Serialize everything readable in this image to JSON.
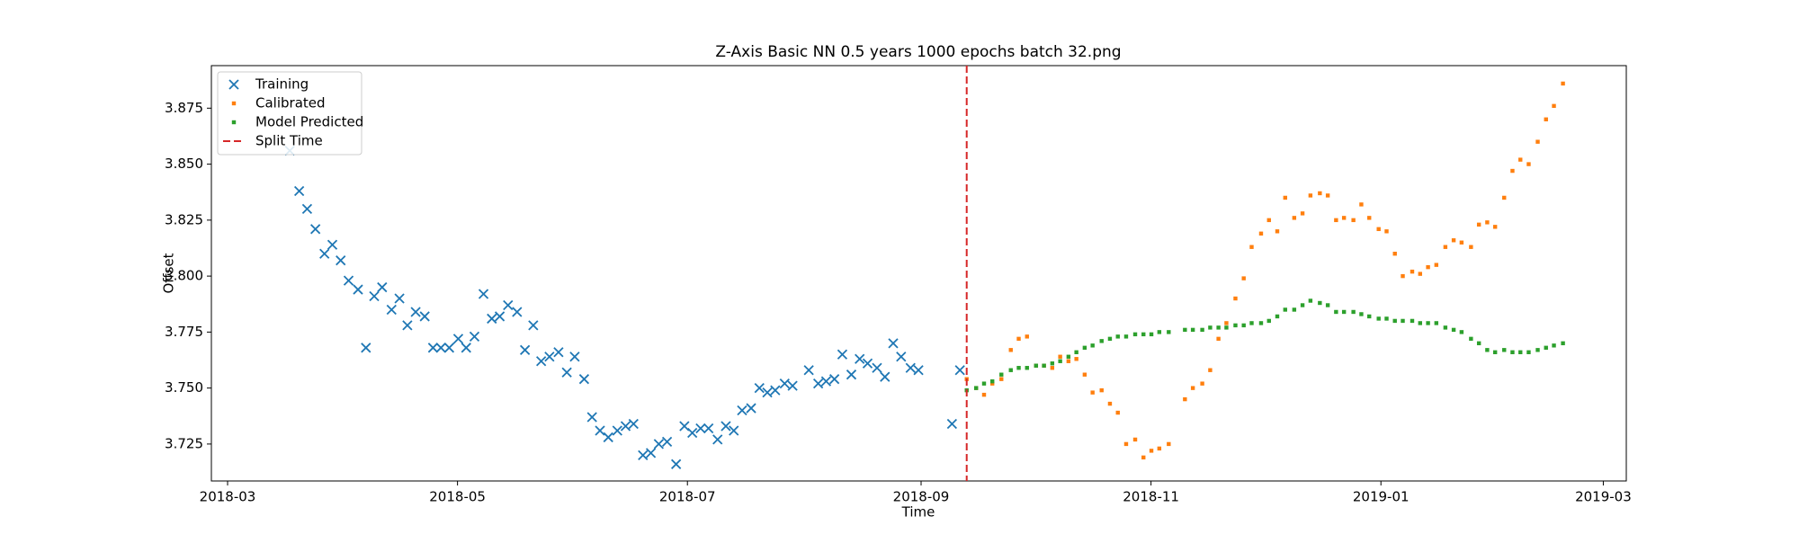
{
  "chart_data": {
    "type": "scatter",
    "title": "Z-Axis Basic NN 0.5 years 1000 epochs batch 32.png",
    "x_label": "Time",
    "y_label": "Offset",
    "xlim": [
      17586.7,
      17962.1
    ],
    "xticks": [
      {
        "value": 17591,
        "label": "2018-03"
      },
      {
        "value": 17652,
        "label": "2018-05"
      },
      {
        "value": 17713,
        "label": "2018-07"
      },
      {
        "value": 17775,
        "label": "2018-09"
      },
      {
        "value": 17836,
        "label": "2018-11"
      },
      {
        "value": 17897,
        "label": "2019-01"
      },
      {
        "value": 17956,
        "label": "2019-03"
      }
    ],
    "ylim": [
      3.7085,
      3.894
    ],
    "yticks": [
      3.725,
      {
        "value": 3.75,
        "label": "3.750"
      },
      3.775,
      {
        "value": 3.8,
        "label": "3.800"
      },
      3.825,
      {
        "value": 3.85,
        "label": "3.850"
      },
      3.875
    ],
    "grid": false,
    "legend": "upper left",
    "series": [
      {
        "name": "Training",
        "color": "#1f77b4",
        "marker": "x",
        "x": [
          17607.5,
          17610.0,
          17612.1,
          17614.3,
          17616.7,
          17618.8,
          17621.0,
          17623.1,
          17625.6,
          17627.7,
          17629.9,
          17632.0,
          17634.5,
          17636.6,
          17638.7,
          17640.9,
          17643.3,
          17645.5,
          17647.6,
          17649.8,
          17652.2,
          17654.3,
          17656.5,
          17658.9,
          17661.1,
          17663.2,
          17665.4,
          17667.8,
          17669.9,
          17672.1,
          17674.2,
          17676.4,
          17678.8,
          17681.0,
          17683.1,
          17685.6,
          17687.7,
          17689.8,
          17692.0,
          17694.4,
          17696.6,
          17698.7,
          17701.2,
          17703.3,
          17705.4,
          17707.6,
          17710.0,
          17712.2,
          17714.3,
          17716.5,
          17718.6,
          17721.0,
          17723.2,
          17725.3,
          17727.5,
          17729.9,
          17732.1,
          17734.2,
          17736.3,
          17738.8,
          17740.9,
          17745.2,
          17747.7,
          17749.8,
          17752.0,
          17754.1,
          17756.5,
          17758.7,
          17760.8,
          17763.3,
          17765.4,
          17767.6,
          17769.7,
          17772.2,
          17774.3,
          17783.2,
          17785.3
        ],
        "values": [
          3.856,
          3.838,
          3.83,
          3.821,
          3.81,
          3.814,
          3.807,
          3.798,
          3.794,
          3.768,
          3.791,
          3.795,
          3.785,
          3.79,
          3.778,
          3.784,
          3.782,
          3.768,
          3.768,
          3.768,
          3.772,
          3.768,
          3.773,
          3.792,
          3.781,
          3.782,
          3.787,
          3.784,
          3.767,
          3.778,
          3.762,
          3.764,
          3.766,
          3.757,
          3.764,
          3.754,
          3.737,
          3.731,
          3.728,
          3.731,
          3.733,
          3.734,
          3.72,
          3.721,
          3.725,
          3.726,
          3.716,
          3.733,
          3.73,
          3.732,
          3.732,
          3.727,
          3.733,
          3.731,
          3.74,
          3.741,
          3.75,
          3.748,
          3.749,
          3.752,
          3.751,
          3.758,
          3.752,
          3.753,
          3.754,
          3.765,
          3.756,
          3.763,
          3.761,
          3.759,
          3.755,
          3.77,
          3.764,
          3.759,
          3.758,
          3.734,
          3.758
        ]
      },
      {
        "name": "Calibrated",
        "color": "#ff7f0e",
        "marker": "dot",
        "x": [
          17787.1,
          17789.6,
          17791.7,
          17793.9,
          17796.3,
          17798.8,
          17800.9,
          17803.1,
          17805.5,
          17807.6,
          17809.8,
          17811.9,
          17814.1,
          17816.2,
          17818.4,
          17820.5,
          17822.9,
          17825.1,
          17827.2,
          17829.4,
          17831.8,
          17834.0,
          17836.1,
          17838.2,
          17840.7,
          17845.0,
          17847.1,
          17849.6,
          17851.7,
          17853.9,
          17856.0,
          17858.4,
          17860.6,
          17862.7,
          17865.2,
          17867.3,
          17869.5,
          17871.6,
          17874.0,
          17876.2,
          17878.3,
          17880.8,
          17882.9,
          17885.1,
          17887.2,
          17889.7,
          17891.8,
          17893.9,
          17896.4,
          17898.5,
          17900.7,
          17902.8,
          17905.3,
          17907.4,
          17909.5,
          17911.7,
          17914.1,
          17916.3,
          17918.4,
          17920.9,
          17923.0,
          17925.2,
          17927.3,
          17929.7,
          17931.9,
          17934.0,
          17936.2,
          17938.6,
          17940.8,
          17942.9,
          17945.3
        ],
        "values": [
          3.754,
          3.75,
          3.747,
          3.752,
          3.754,
          3.767,
          3.772,
          3.773,
          3.76,
          3.76,
          3.759,
          3.764,
          3.762,
          3.763,
          3.756,
          3.748,
          3.749,
          3.743,
          3.739,
          3.725,
          3.727,
          3.719,
          3.722,
          3.723,
          3.725,
          3.745,
          3.75,
          3.752,
          3.758,
          3.772,
          3.779,
          3.79,
          3.799,
          3.813,
          3.819,
          3.825,
          3.82,
          3.835,
          3.826,
          3.828,
          3.836,
          3.837,
          3.836,
          3.825,
          3.826,
          3.825,
          3.832,
          3.826,
          3.821,
          3.82,
          3.81,
          3.8,
          3.802,
          3.801,
          3.804,
          3.805,
          3.813,
          3.816,
          3.815,
          3.813,
          3.823,
          3.824,
          3.822,
          3.835,
          3.847,
          3.852,
          3.85,
          3.86,
          3.87,
          3.876,
          3.886
        ]
      },
      {
        "name": "Model Predicted",
        "color": "#2ca02c",
        "marker": "dot",
        "x": [
          17787.1,
          17789.6,
          17791.7,
          17793.9,
          17796.3,
          17798.8,
          17800.9,
          17803.1,
          17805.5,
          17807.6,
          17809.8,
          17811.9,
          17814.1,
          17816.2,
          17818.4,
          17820.5,
          17822.9,
          17825.1,
          17827.2,
          17829.4,
          17831.8,
          17834.0,
          17836.1,
          17838.2,
          17840.7,
          17845.0,
          17847.1,
          17849.6,
          17851.7,
          17853.9,
          17856.0,
          17858.4,
          17860.6,
          17862.7,
          17865.2,
          17867.3,
          17869.5,
          17871.6,
          17874.0,
          17876.2,
          17878.3,
          17880.8,
          17882.9,
          17885.1,
          17887.2,
          17889.7,
          17891.8,
          17893.9,
          17896.4,
          17898.5,
          17900.7,
          17902.8,
          17905.3,
          17907.4,
          17909.5,
          17911.7,
          17914.1,
          17916.3,
          17918.4,
          17920.9,
          17923.0,
          17925.2,
          17927.3,
          17929.7,
          17931.9,
          17934.0,
          17936.2,
          17938.6,
          17940.8,
          17942.9,
          17945.3
        ],
        "values": [
          3.749,
          3.75,
          3.752,
          3.753,
          3.756,
          3.758,
          3.759,
          3.759,
          3.76,
          3.76,
          3.761,
          3.762,
          3.764,
          3.766,
          3.768,
          3.769,
          3.771,
          3.772,
          3.773,
          3.773,
          3.774,
          3.774,
          3.774,
          3.775,
          3.775,
          3.776,
          3.776,
          3.776,
          3.777,
          3.777,
          3.777,
          3.778,
          3.778,
          3.779,
          3.779,
          3.78,
          3.782,
          3.785,
          3.785,
          3.787,
          3.789,
          3.788,
          3.787,
          3.784,
          3.784,
          3.784,
          3.783,
          3.782,
          3.781,
          3.781,
          3.78,
          3.78,
          3.78,
          3.779,
          3.779,
          3.779,
          3.777,
          3.776,
          3.775,
          3.772,
          3.77,
          3.767,
          3.766,
          3.767,
          3.766,
          3.766,
          3.766,
          3.767,
          3.768,
          3.769,
          3.77
        ]
      }
    ],
    "vlines": [
      {
        "name": "Split Time",
        "x": 17787.1,
        "color": "#d62728"
      }
    ]
  }
}
